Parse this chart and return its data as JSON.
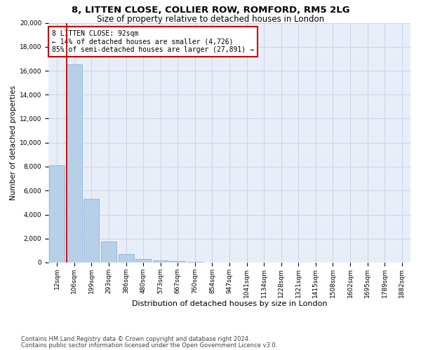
{
  "title1": "8, LITTEN CLOSE, COLLIER ROW, ROMFORD, RM5 2LG",
  "title2": "Size of property relative to detached houses in London",
  "xlabel": "Distribution of detached houses by size in London",
  "ylabel": "Number of detached properties",
  "categories": [
    "12sqm",
    "106sqm",
    "199sqm",
    "293sqm",
    "386sqm",
    "480sqm",
    "573sqm",
    "667sqm",
    "760sqm",
    "854sqm",
    "947sqm",
    "1041sqm",
    "1134sqm",
    "1228sqm",
    "1321sqm",
    "1415sqm",
    "1508sqm",
    "1602sqm",
    "1695sqm",
    "1789sqm",
    "1882sqm"
  ],
  "values": [
    8100,
    16500,
    5300,
    1750,
    700,
    280,
    160,
    100,
    60,
    0,
    0,
    0,
    0,
    0,
    0,
    0,
    0,
    0,
    0,
    0,
    0
  ],
  "bar_color": "#b8cfe8",
  "bar_edge_color": "#7aadd4",
  "annotation_text": "8 LITTEN CLOSE: 92sqm\n← 14% of detached houses are smaller (4,726)\n85% of semi-detached houses are larger (27,891) →",
  "annotation_box_color": "#ffffff",
  "annotation_box_edge": "#cc0000",
  "vline_color": "#cc0000",
  "vline_x_index": 1,
  "ylim": [
    0,
    20000
  ],
  "yticks": [
    0,
    2000,
    4000,
    6000,
    8000,
    10000,
    12000,
    14000,
    16000,
    18000,
    20000
  ],
  "grid_color": "#c8d4e8",
  "background_color": "#e8eef8",
  "footer_line1": "Contains HM Land Registry data © Crown copyright and database right 2024.",
  "footer_line2": "Contains public sector information licensed under the Open Government Licence v3.0.",
  "title1_fontsize": 9.5,
  "title2_fontsize": 8.5,
  "xlabel_fontsize": 8,
  "ylabel_fontsize": 7.5,
  "tick_fontsize": 6.5,
  "annotation_fontsize": 7,
  "footer_fontsize": 6
}
